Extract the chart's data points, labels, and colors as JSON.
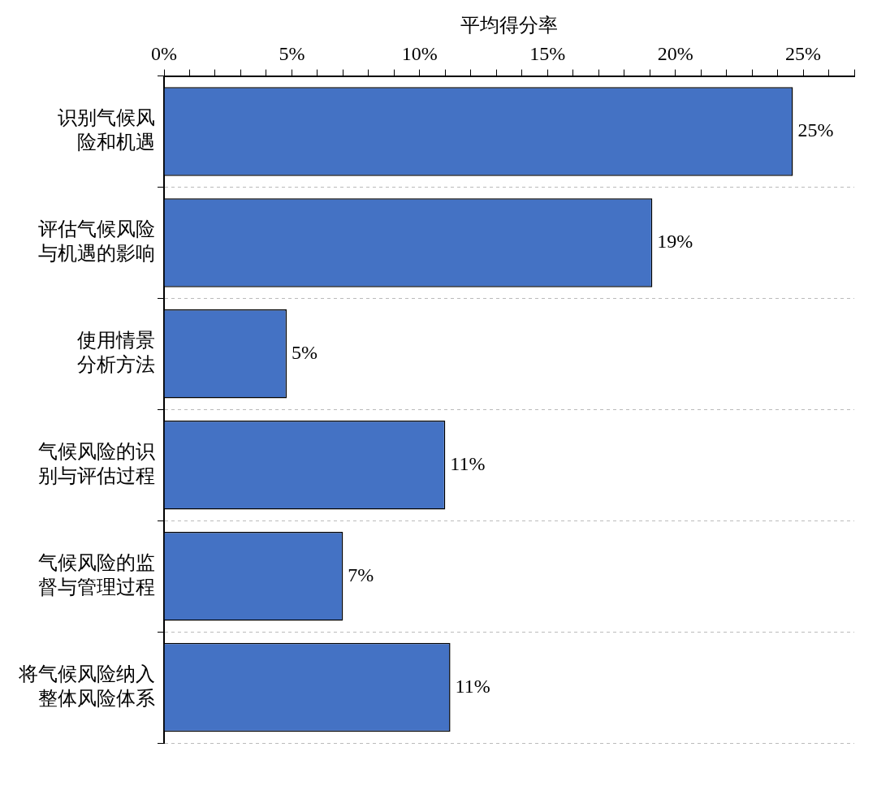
{
  "chart_data": {
    "type": "bar",
    "orientation": "horizontal",
    "xlabel": "平均得分率",
    "categories": [
      "识别气候风险和机遇",
      "评估气候风险与机遇的影响",
      "使用情景分析方法",
      "气候风险的识别与评估过程",
      "气候风险的监督与管理过程",
      "将气候风险纳入整体风险体系"
    ],
    "values": [
      24.6,
      19.1,
      4.8,
      11.0,
      7.0,
      11.2
    ],
    "value_labels": [
      "25%",
      "19%",
      "5%",
      "11%",
      "7%",
      "11%"
    ],
    "color": "#4472c4",
    "xlim": [
      0,
      27
    ],
    "xticks": [
      {
        "value": 0,
        "label": "0%"
      },
      {
        "value": 1,
        "label": null
      },
      {
        "value": 2,
        "label": null
      },
      {
        "value": 3,
        "label": null
      },
      {
        "value": 4,
        "label": null
      },
      {
        "value": 5,
        "label": "5%"
      },
      {
        "value": 6,
        "label": null
      },
      {
        "value": 7,
        "label": null
      },
      {
        "value": 8,
        "label": null
      },
      {
        "value": 9,
        "label": null
      },
      {
        "value": 10,
        "label": "10%"
      },
      {
        "value": 11,
        "label": null
      },
      {
        "value": 12,
        "label": null
      },
      {
        "value": 13,
        "label": null
      },
      {
        "value": 14,
        "label": null
      },
      {
        "value": 15,
        "label": "15%"
      },
      {
        "value": 16,
        "label": null
      },
      {
        "value": 17,
        "label": null
      },
      {
        "value": 18,
        "label": null
      },
      {
        "value": 19,
        "label": null
      },
      {
        "value": 20,
        "label": "20%"
      },
      {
        "value": 21,
        "label": null
      },
      {
        "value": 22,
        "label": null
      },
      {
        "value": 23,
        "label": null
      },
      {
        "value": 24,
        "label": null
      },
      {
        "value": 25,
        "label": "25%"
      },
      {
        "value": 26,
        "label": null
      },
      {
        "value": 27,
        "label": null
      }
    ],
    "grid": "y",
    "legend": false
  }
}
